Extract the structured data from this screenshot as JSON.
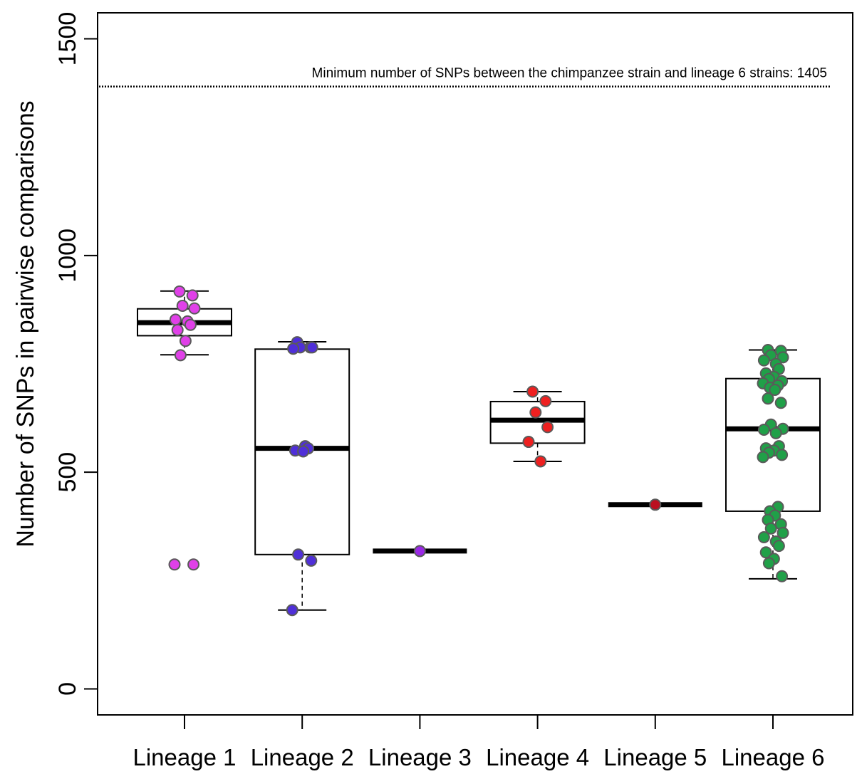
{
  "chart_data": {
    "type": "box",
    "title": "",
    "xlabel": "",
    "ylabel": "Number of SNPs in pairwise comparisons",
    "ylim": [
      -60,
      1560
    ],
    "yticks": [
      0,
      500,
      1000,
      1500
    ],
    "categories": [
      "Lineage 1",
      "Lineage 2",
      "Lineage 3",
      "Lineage 4",
      "Lineage 5",
      "Lineage 6"
    ],
    "boxes": [
      {
        "min": 771,
        "q1": 815,
        "median": 845,
        "q3": 877,
        "max": 918
      },
      {
        "min": 182,
        "q1": 310,
        "median": 555,
        "q3": 784,
        "max": 801
      },
      {
        "min": 318,
        "q1": 318,
        "median": 318,
        "q3": 318,
        "max": 318
      },
      {
        "min": 525,
        "q1": 567,
        "median": 620,
        "q3": 663,
        "max": 686
      },
      {
        "min": 425,
        "q1": 425,
        "median": 425,
        "q3": 425,
        "max": 425
      },
      {
        "min": 254,
        "q1": 410,
        "median": 600,
        "q3": 716,
        "max": 782
      }
    ],
    "points": [
      {
        "color": "#e040e8",
        "values": [
          917,
          908,
          884,
          878,
          852,
          848,
          840,
          828,
          803,
          770,
          287,
          287
        ]
      },
      {
        "color": "#4f2fd8",
        "values": [
          800,
          788,
          788,
          788,
          785,
          560,
          555,
          550,
          548,
          310,
          296,
          182
        ]
      },
      {
        "color": "#9a28e6",
        "values": [
          318
        ]
      },
      {
        "color": "#ee2020",
        "values": [
          686,
          664,
          638,
          604,
          570,
          525
        ]
      },
      {
        "color": "#bb1020",
        "values": [
          425
        ]
      },
      {
        "color": "#20a048",
        "values": [
          782,
          780,
          770,
          765,
          758,
          750,
          738,
          728,
          720,
          715,
          710,
          705,
          700,
          695,
          690,
          670,
          660,
          610,
          600,
          598,
          590,
          560,
          555,
          550,
          545,
          540,
          535,
          420,
          410,
          400,
          390,
          380,
          370,
          360,
          350,
          340,
          330,
          315,
          300,
          290,
          260
        ]
      }
    ],
    "reference_line": {
      "value": 1390,
      "style": "dotted",
      "label": "Minimum number of SNPs between the chimpanzee strain and lineage 6 strains: 1405"
    }
  }
}
